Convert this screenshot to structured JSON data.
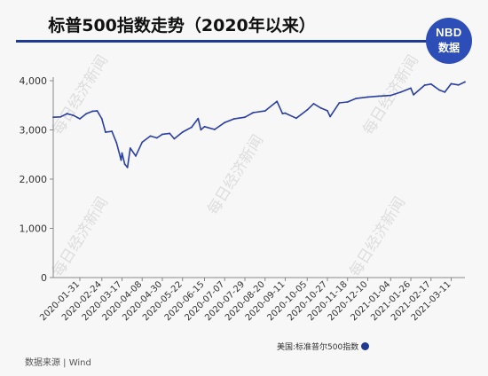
{
  "title": "标普500指数走势（2020年以来）",
  "logo": {
    "line1": "NBD",
    "line2": "数据"
  },
  "watermark": "每日经济新闻",
  "legend_label": "美国:标准普尔500指数",
  "source": "数据来源 | Wind",
  "line_color": "#2a3fa3",
  "chart_data": {
    "type": "line",
    "title": "标普500指数走势（2020年以来）",
    "xlabel": "",
    "ylabel": "",
    "ylim": [
      0,
      4000
    ],
    "yticks": [
      0,
      1000,
      2000,
      3000,
      4000
    ],
    "ytick_labels": [
      "0",
      "1,000",
      "2,000",
      "3,000",
      "4,000"
    ],
    "xtick_labels": [
      "2020-01-31",
      "2020-02-24",
      "2020-03-17",
      "2020-04-08",
      "2020-04-30",
      "2020-05-22",
      "2020-06-15",
      "2020-07-07",
      "2020-07-29",
      "2020-08-20",
      "2020-09-11",
      "2020-10-05",
      "2020-10-27",
      "2020-11-18",
      "2020-12-10",
      "2021-01-04",
      "2021-01-26",
      "2021-02-17",
      "2021-03-11"
    ],
    "grid": false,
    "legend_position": "bottom",
    "series": [
      {
        "name": "美国:标准普尔500指数",
        "x": [
          "2020-01-02",
          "2020-01-10",
          "2020-01-17",
          "2020-01-24",
          "2020-01-31",
          "2020-02-07",
          "2020-02-14",
          "2020-02-19",
          "2020-02-24",
          "2020-02-28",
          "2020-03-06",
          "2020-03-11",
          "2020-03-16",
          "2020-03-17",
          "2020-03-20",
          "2020-03-23",
          "2020-03-26",
          "2020-04-01",
          "2020-04-08",
          "2020-04-17",
          "2020-04-24",
          "2020-04-30",
          "2020-05-08",
          "2020-05-13",
          "2020-05-22",
          "2020-06-01",
          "2020-06-08",
          "2020-06-11",
          "2020-06-15",
          "2020-06-26",
          "2020-07-07",
          "2020-07-17",
          "2020-07-29",
          "2020-08-07",
          "2020-08-20",
          "2020-09-02",
          "2020-09-08",
          "2020-09-11",
          "2020-09-23",
          "2020-10-05",
          "2020-10-12",
          "2020-10-20",
          "2020-10-27",
          "2020-10-30",
          "2020-11-09",
          "2020-11-18",
          "2020-11-27",
          "2020-12-10",
          "2020-12-22",
          "2021-01-04",
          "2021-01-15",
          "2021-01-26",
          "2021-01-29",
          "2021-02-10",
          "2021-02-17",
          "2021-02-26",
          "2021-03-04",
          "2021-03-11",
          "2021-03-19",
          "2021-03-26"
        ],
        "values": [
          3258,
          3265,
          3330,
          3295,
          3225,
          3328,
          3380,
          3386,
          3226,
          2954,
          2972,
          2741,
          2386,
          2529,
          2305,
          2237,
          2630,
          2470,
          2750,
          2875,
          2837,
          2912,
          2930,
          2820,
          2955,
          3055,
          3232,
          3002,
          3066,
          3009,
          3150,
          3224,
          3258,
          3351,
          3385,
          3580,
          3332,
          3341,
          3237,
          3408,
          3534,
          3443,
          3390,
          3270,
          3550,
          3567,
          3638,
          3668,
          3687,
          3700,
          3768,
          3849,
          3714,
          3909,
          3932,
          3811,
          3768,
          3939,
          3913,
          3974
        ]
      }
    ]
  }
}
